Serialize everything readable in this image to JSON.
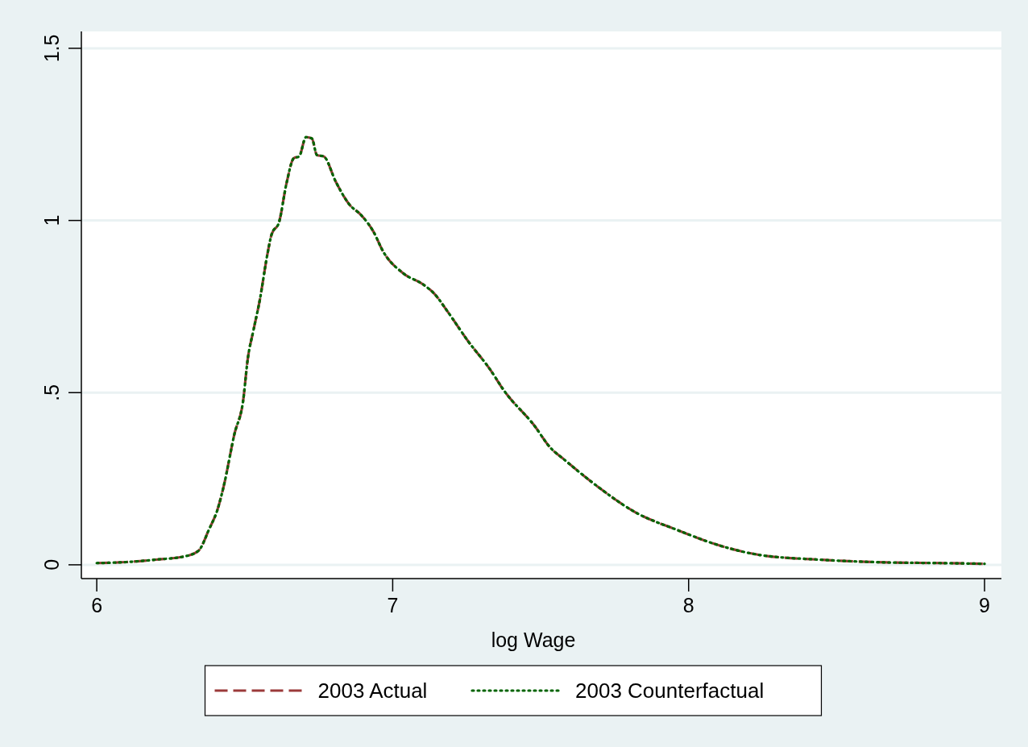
{
  "chart_data": {
    "type": "line",
    "xlabel": "log Wage",
    "xlim": [
      5.948,
      9.057
    ],
    "ylim": [
      -0.04,
      1.549
    ],
    "xticks": [
      6,
      7,
      8,
      9
    ],
    "yticks": [
      0,
      {
        "value": 0.5,
        "label": ".5"
      },
      1,
      1.5
    ],
    "grid": "y",
    "legend": "bottom",
    "marker": "none",
    "series": [
      {
        "name": "2003 Actual",
        "color": "#9b3a3a",
        "line_style": "dashed",
        "x": [
          6.0,
          6.1,
          6.2,
          6.3,
          6.344,
          6.379,
          6.409,
          6.43,
          6.465,
          6.495,
          6.51,
          6.53,
          6.551,
          6.576,
          6.591,
          6.616,
          6.641,
          6.666,
          6.684,
          6.707,
          6.727,
          6.744,
          6.767,
          6.808,
          6.853,
          6.893,
          6.934,
          6.969,
          7.035,
          7.105,
          7.141,
          7.186,
          7.256,
          7.327,
          7.377,
          7.478,
          7.534,
          7.579,
          7.693,
          7.817,
          7.965,
          8.101,
          8.237,
          8.441,
          8.668,
          8.85,
          9.0
        ],
        "values": [
          0.005,
          0.008,
          0.015,
          0.025,
          0.041,
          0.102,
          0.163,
          0.232,
          0.379,
          0.479,
          0.596,
          0.683,
          0.769,
          0.899,
          0.96,
          0.995,
          1.107,
          1.181,
          1.186,
          1.242,
          1.238,
          1.19,
          1.186,
          1.112,
          1.047,
          1.016,
          0.969,
          0.908,
          0.847,
          0.813,
          0.787,
          0.735,
          0.648,
          0.57,
          0.505,
          0.405,
          0.339,
          0.306,
          0.227,
          0.154,
          0.1,
          0.057,
          0.029,
          0.015,
          0.007,
          0.005,
          0.003
        ]
      },
      {
        "name": "2003 Counterfactual",
        "color": "#006400",
        "line_style": "dotted",
        "x": [
          6.0,
          6.1,
          6.2,
          6.3,
          6.344,
          6.379,
          6.409,
          6.43,
          6.465,
          6.495,
          6.51,
          6.53,
          6.551,
          6.576,
          6.591,
          6.616,
          6.641,
          6.666,
          6.684,
          6.707,
          6.727,
          6.744,
          6.767,
          6.808,
          6.853,
          6.893,
          6.934,
          6.969,
          7.035,
          7.105,
          7.141,
          7.186,
          7.256,
          7.327,
          7.377,
          7.478,
          7.534,
          7.579,
          7.693,
          7.817,
          7.965,
          8.101,
          8.237,
          8.441,
          8.668,
          8.85,
          9.0
        ],
        "values": [
          0.005,
          0.008,
          0.015,
          0.025,
          0.041,
          0.102,
          0.163,
          0.232,
          0.379,
          0.479,
          0.596,
          0.683,
          0.769,
          0.899,
          0.96,
          0.995,
          1.107,
          1.181,
          1.186,
          1.242,
          1.238,
          1.19,
          1.186,
          1.112,
          1.047,
          1.016,
          0.969,
          0.908,
          0.847,
          0.813,
          0.787,
          0.735,
          0.648,
          0.57,
          0.505,
          0.405,
          0.339,
          0.306,
          0.227,
          0.154,
          0.1,
          0.057,
          0.029,
          0.015,
          0.007,
          0.005,
          0.003
        ]
      }
    ]
  }
}
